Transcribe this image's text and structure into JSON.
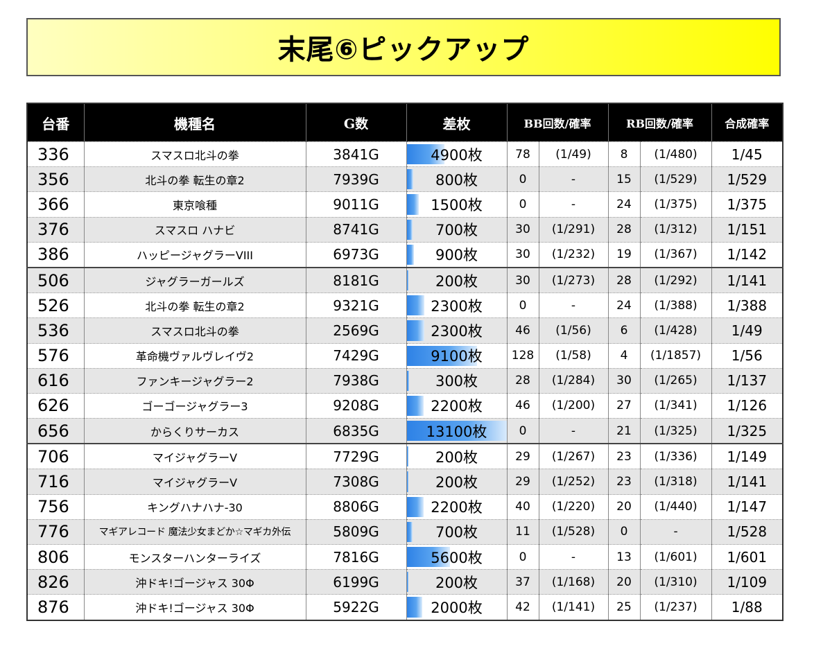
{
  "title": "末尾⑥ピックアップ",
  "headers": {
    "id": "台番",
    "name": "機種名",
    "games": "G数",
    "diff": "差枚",
    "bb": "BB回数/確率",
    "rb": "RB回数/確率",
    "combined": "合成確率"
  },
  "max_diff": 13100,
  "rows": [
    {
      "id": "336",
      "name": "スマスロ北斗の拳",
      "games": "3841G",
      "diff": "4900枚",
      "diff_value": 4900,
      "bb_count": "78",
      "bb_rate": "(1/49)",
      "rb_count": "8",
      "rb_rate": "(1/480)",
      "combined": "1/45"
    },
    {
      "id": "356",
      "name": "北斗の拳 転生の章2",
      "games": "7939G",
      "diff": "800枚",
      "diff_value": 800,
      "bb_count": "0",
      "bb_rate": "-",
      "rb_count": "15",
      "rb_rate": "(1/529)",
      "combined": "1/529"
    },
    {
      "id": "366",
      "name": "東京喰種",
      "games": "9011G",
      "diff": "1500枚",
      "diff_value": 1500,
      "bb_count": "0",
      "bb_rate": "-",
      "rb_count": "24",
      "rb_rate": "(1/375)",
      "combined": "1/375"
    },
    {
      "id": "376",
      "name": "スマスロ ハナビ",
      "games": "8741G",
      "diff": "700枚",
      "diff_value": 700,
      "bb_count": "30",
      "bb_rate": "(1/291)",
      "rb_count": "28",
      "rb_rate": "(1/312)",
      "combined": "1/151"
    },
    {
      "id": "386",
      "name": "ハッピージャグラーVIII",
      "games": "6973G",
      "diff": "900枚",
      "diff_value": 900,
      "bb_count": "30",
      "bb_rate": "(1/232)",
      "rb_count": "19",
      "rb_rate": "(1/367)",
      "combined": "1/142"
    },
    {
      "id": "506",
      "name": "ジャグラーガールズ",
      "games": "8181G",
      "diff": "200枚",
      "diff_value": 200,
      "bb_count": "30",
      "bb_rate": "(1/273)",
      "rb_count": "28",
      "rb_rate": "(1/292)",
      "combined": "1/141"
    },
    {
      "id": "526",
      "name": "北斗の拳 転生の章2",
      "games": "9321G",
      "diff": "2300枚",
      "diff_value": 2300,
      "bb_count": "0",
      "bb_rate": "-",
      "rb_count": "24",
      "rb_rate": "(1/388)",
      "combined": "1/388"
    },
    {
      "id": "536",
      "name": "スマスロ北斗の拳",
      "games": "2569G",
      "diff": "2300枚",
      "diff_value": 2300,
      "bb_count": "46",
      "bb_rate": "(1/56)",
      "rb_count": "6",
      "rb_rate": "(1/428)",
      "combined": "1/49"
    },
    {
      "id": "576",
      "name": "革命機ヴァルヴレイヴ2",
      "games": "7429G",
      "diff": "9100枚",
      "diff_value": 9100,
      "bb_count": "128",
      "bb_rate": "(1/58)",
      "rb_count": "4",
      "rb_rate": "(1/1857)",
      "combined": "1/56"
    },
    {
      "id": "616",
      "name": "ファンキージャグラー2",
      "games": "7938G",
      "diff": "300枚",
      "diff_value": 300,
      "bb_count": "28",
      "bb_rate": "(1/284)",
      "rb_count": "30",
      "rb_rate": "(1/265)",
      "combined": "1/137"
    },
    {
      "id": "626",
      "name": "ゴーゴージャグラー3",
      "games": "9208G",
      "diff": "2200枚",
      "diff_value": 2200,
      "bb_count": "46",
      "bb_rate": "(1/200)",
      "rb_count": "27",
      "rb_rate": "(1/341)",
      "combined": "1/126"
    },
    {
      "id": "656",
      "name": "からくりサーカス",
      "games": "6835G",
      "diff": "13100枚",
      "diff_value": 13100,
      "bb_count": "0",
      "bb_rate": "-",
      "rb_count": "21",
      "rb_rate": "(1/325)",
      "combined": "1/325"
    },
    {
      "id": "706",
      "name": "マイジャグラーV",
      "games": "7729G",
      "diff": "200枚",
      "diff_value": 200,
      "bb_count": "29",
      "bb_rate": "(1/267)",
      "rb_count": "23",
      "rb_rate": "(1/336)",
      "combined": "1/149"
    },
    {
      "id": "716",
      "name": "マイジャグラーV",
      "games": "7308G",
      "diff": "200枚",
      "diff_value": 200,
      "bb_count": "29",
      "bb_rate": "(1/252)",
      "rb_count": "23",
      "rb_rate": "(1/318)",
      "combined": "1/141"
    },
    {
      "id": "756",
      "name": "キングハナハナ-30",
      "games": "8806G",
      "diff": "2200枚",
      "diff_value": 2200,
      "bb_count": "40",
      "bb_rate": "(1/220)",
      "rb_count": "20",
      "rb_rate": "(1/440)",
      "combined": "1/147"
    },
    {
      "id": "776",
      "name": "マギアレコード 魔法少女まどか☆マギカ外伝",
      "games": "5809G",
      "diff": "700枚",
      "diff_value": 700,
      "bb_count": "11",
      "bb_rate": "(1/528)",
      "rb_count": "0",
      "rb_rate": "-",
      "combined": "1/528"
    },
    {
      "id": "806",
      "name": "モンスターハンターライズ",
      "games": "7816G",
      "diff": "5600枚",
      "diff_value": 5600,
      "bb_count": "0",
      "bb_rate": "-",
      "rb_count": "13",
      "rb_rate": "(1/601)",
      "combined": "1/601"
    },
    {
      "id": "826",
      "name": "沖ドキ!ゴージャス 30Φ",
      "games": "6199G",
      "diff": "200枚",
      "diff_value": 200,
      "bb_count": "37",
      "bb_rate": "(1/168)",
      "rb_count": "20",
      "rb_rate": "(1/310)",
      "combined": "1/109"
    },
    {
      "id": "876",
      "name": "沖ドキ!ゴージャス 30Φ",
      "games": "5922G",
      "diff": "2000枚",
      "diff_value": 2000,
      "bb_count": "42",
      "bb_rate": "(1/141)",
      "rb_count": "25",
      "rb_rate": "(1/237)",
      "combined": "1/88"
    }
  ]
}
